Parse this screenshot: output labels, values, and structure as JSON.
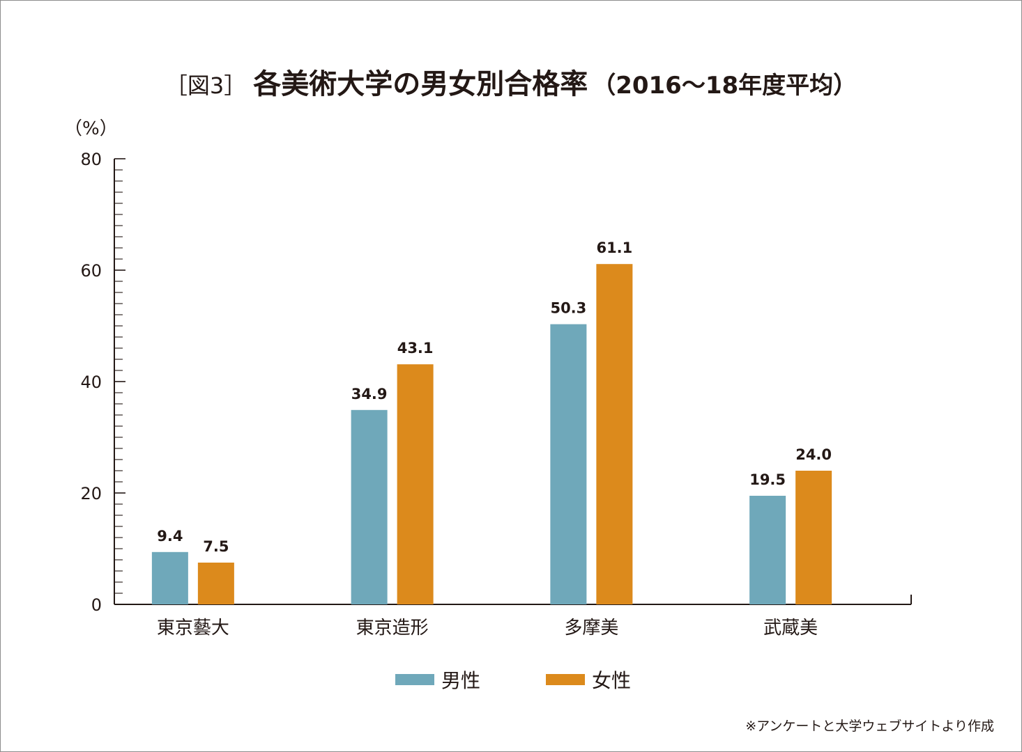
{
  "title": {
    "figure_label": "［図3］",
    "main": "各美術大学の男女別合格率",
    "period": "（2016〜18年度平均）"
  },
  "unit_label": "（%）",
  "legend": {
    "male": "男性",
    "female": "女性"
  },
  "note": "※アンケートと大学ウェブサイトより作成",
  "colors": {
    "male": "#6fa8ba",
    "female": "#dc8a1c",
    "axis": "#231815"
  },
  "chart_data": {
    "type": "bar",
    "title": "各美術大学の男女別合格率（2016〜18年度平均）",
    "ylabel": "（%）",
    "xlabel": "",
    "ylim": [
      0,
      80
    ],
    "yticks": [
      "0",
      "20",
      "40",
      "60",
      "80"
    ],
    "categories": [
      "東京藝大",
      "東京造形",
      "多摩美",
      "武蔵美"
    ],
    "series": [
      {
        "name": "男性",
        "values": [
          9.4,
          34.9,
          50.3,
          19.5
        ],
        "labels": [
          "9.4",
          "34.9",
          "50.3",
          "19.5"
        ]
      },
      {
        "name": "女性",
        "values": [
          7.5,
          43.1,
          61.1,
          24.0
        ],
        "labels": [
          "7.5",
          "43.1",
          "61.1",
          "24.0"
        ]
      }
    ],
    "legend_position": "bottom-center",
    "grid": false
  }
}
